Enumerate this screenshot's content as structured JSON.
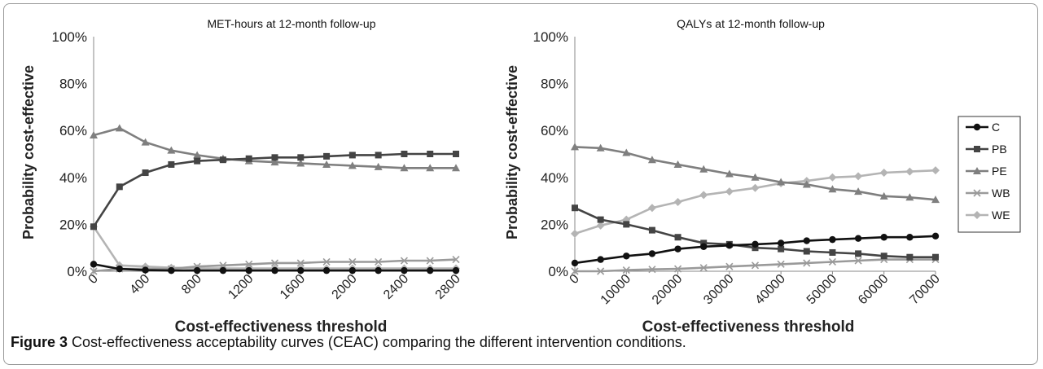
{
  "caption": {
    "label": "Figure 3",
    "text": "Cost-effectiveness acceptability curves (CEAC) comparing the different intervention conditions."
  },
  "colors": {
    "C": "#111111",
    "PB": "#444444",
    "PE": "#7f7f7f",
    "WB": "#9a9a9a",
    "WE": "#b4b4b4"
  },
  "legend": {
    "placement": "right",
    "items": [
      {
        "name": "C",
        "marker": "circle"
      },
      {
        "name": "PB",
        "marker": "square"
      },
      {
        "name": "PE",
        "marker": "triangle"
      },
      {
        "name": "WB",
        "marker": "x"
      },
      {
        "name": "WE",
        "marker": "diamond"
      }
    ]
  },
  "chart_data": [
    {
      "type": "line",
      "title": "MET-hours at 12-month follow-up",
      "xlabel": "Cost-effectiveness threshold",
      "ylabel": "Probability cost-effective",
      "x": [
        0,
        200,
        400,
        600,
        800,
        1000,
        1200,
        1400,
        1600,
        1800,
        2000,
        2200,
        2400,
        2600,
        2800
      ],
      "x_ticks": [
        "0",
        "400",
        "800",
        "1200",
        "1600",
        "2000",
        "2400",
        "2800"
      ],
      "y_ticks": [
        "0%",
        "20%",
        "40%",
        "60%",
        "80%",
        "100%"
      ],
      "ylim": [
        0,
        100
      ],
      "grid": false,
      "series": [
        {
          "name": "C",
          "values": [
            3,
            1,
            0.5,
            0.3,
            0.3,
            0.3,
            0.3,
            0.3,
            0.3,
            0.3,
            0.3,
            0.3,
            0.3,
            0.3,
            0.3
          ]
        },
        {
          "name": "PB",
          "values": [
            19,
            36,
            42,
            45.5,
            47,
            47.5,
            48,
            48.5,
            48.5,
            49,
            49.5,
            49.5,
            50,
            50,
            50
          ]
        },
        {
          "name": "PE",
          "values": [
            58,
            61,
            55,
            51.5,
            49.5,
            48,
            47,
            46.5,
            46,
            45.5,
            45,
            44.5,
            44,
            44,
            44
          ]
        },
        {
          "name": "WB",
          "values": [
            0,
            1,
            1,
            1,
            2,
            2.5,
            3,
            3.5,
            3.5,
            4,
            4,
            4,
            4.5,
            4.5,
            5
          ]
        },
        {
          "name": "WE",
          "values": [
            19,
            2.5,
            2,
            1.5,
            1.3,
            1.2,
            1.2,
            1.2,
            1.2,
            1.2,
            1.2,
            1.2,
            1.2,
            1.2,
            1.2
          ]
        }
      ]
    },
    {
      "type": "line",
      "title": "QALYs at 12-month follow-up",
      "xlabel": "Cost-effectiveness threshold",
      "ylabel": "Probability cost-effective",
      "x": [
        0,
        5000,
        10000,
        15000,
        20000,
        25000,
        30000,
        35000,
        40000,
        45000,
        50000,
        55000,
        60000,
        65000,
        70000
      ],
      "x_ticks": [
        "0",
        "10000",
        "20000",
        "30000",
        "40000",
        "50000",
        "60000",
        "70000"
      ],
      "y_ticks": [
        "0%",
        "20%",
        "40%",
        "60%",
        "80%",
        "100%"
      ],
      "ylim": [
        0,
        100
      ],
      "grid": false,
      "series": [
        {
          "name": "C",
          "values": [
            3.5,
            5,
            6.5,
            7.5,
            9.5,
            10.5,
            11,
            11.5,
            12,
            13,
            13.5,
            14,
            14.5,
            14.5,
            15
          ]
        },
        {
          "name": "PB",
          "values": [
            27,
            22,
            20,
            17.5,
            14.5,
            12,
            11.5,
            10,
            9.5,
            8.5,
            8,
            7.5,
            6.5,
            6,
            6
          ]
        },
        {
          "name": "PE",
          "values": [
            53,
            52.5,
            50.5,
            47.5,
            45.5,
            43.5,
            41.5,
            40,
            38,
            37,
            35,
            34,
            32,
            31.5,
            30.5
          ]
        },
        {
          "name": "WB",
          "values": [
            0,
            0,
            0.5,
            0.8,
            1,
            1.5,
            2,
            2.5,
            3,
            3.5,
            4,
            4.5,
            5,
            5,
            5
          ]
        },
        {
          "name": "WE",
          "values": [
            16,
            19.5,
            22,
            27,
            29.5,
            32.5,
            34,
            35.5,
            37.5,
            38.5,
            40,
            40.5,
            42,
            42.5,
            43
          ]
        }
      ]
    }
  ]
}
